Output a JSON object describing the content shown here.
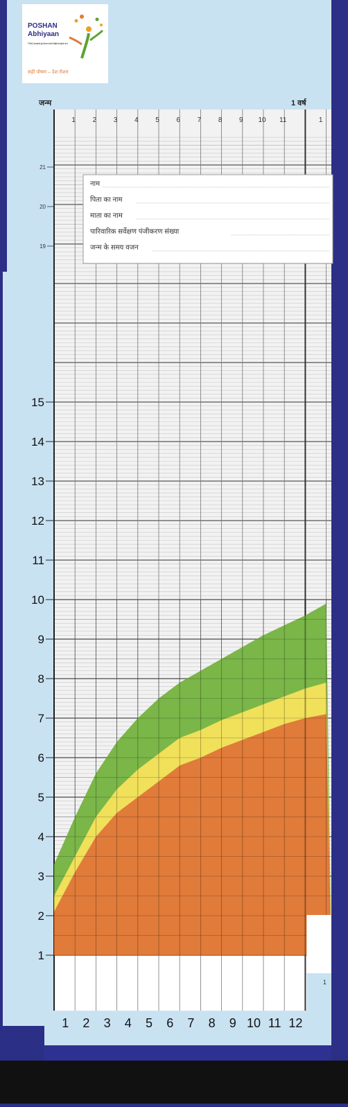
{
  "logo": {
    "brand_line1": "POSHAN",
    "brand_line2": "Abhiyaan",
    "tagline_small": "PM's Overarching Scheme for Holistic Nourishment",
    "slogan_hindi": "सही पोषण – देश रोशन"
  },
  "colors": {
    "page_bg": "#c9e2f2",
    "border_dark": "#2b2f86",
    "grid_bg": "#f2f2f2",
    "orange_band": "#e07b3a",
    "yellow_band": "#f0e05a",
    "green_band": "#7ab648",
    "footer_bar": "#2e3192",
    "bottom_strip": "#111111"
  },
  "header": {
    "birth_label": "जन्म",
    "year_label": "1 वर्ष",
    "top_month_ticks": [
      "1",
      "2",
      "3",
      "4",
      "5",
      "6",
      "7",
      "8",
      "9",
      "10",
      "11"
    ],
    "next_year_first_tick": "1"
  },
  "info_box": {
    "fields": [
      "नाम",
      "पिता का नाम",
      "माता का नाम",
      "पारिवारिक सर्वेक्षण पंजीकरण संख्या",
      "जन्म के समय वजन"
    ]
  },
  "chart_data": {
    "type": "area",
    "title": "",
    "xlabel": "",
    "ylabel": "",
    "x_ticks_bottom": [
      "1",
      "2",
      "3",
      "4",
      "5",
      "6",
      "7",
      "8",
      "9",
      "10",
      "11",
      "12"
    ],
    "x_tick_second_year": "1",
    "y_ticks": [
      "1",
      "2",
      "3",
      "4",
      "5",
      "6",
      "7",
      "8",
      "9",
      "10",
      "11",
      "12",
      "13",
      "14",
      "15"
    ],
    "y_ticks_upper": [
      "19",
      "20",
      "21"
    ],
    "ylim": [
      1,
      21.7
    ],
    "xlim": [
      0,
      13
    ],
    "grid": true,
    "series": [
      {
        "color": "orange_band",
        "x": [
          0,
          1,
          2,
          3,
          4,
          5,
          6,
          7,
          8,
          9,
          10,
          11,
          12,
          13
        ],
        "values": [
          2.1,
          3.1,
          4.0,
          4.6,
          5.0,
          5.4,
          5.8,
          6.0,
          6.25,
          6.45,
          6.65,
          6.85,
          7.0,
          7.1
        ]
      },
      {
        "color": "yellow_band",
        "x": [
          0,
          1,
          2,
          3,
          4,
          5,
          6,
          7,
          8,
          9,
          10,
          11,
          12,
          13
        ],
        "values": [
          2.5,
          3.5,
          4.5,
          5.2,
          5.7,
          6.1,
          6.5,
          6.7,
          6.95,
          7.15,
          7.35,
          7.55,
          7.75,
          7.9
        ]
      },
      {
        "color": "green_band",
        "x": [
          0,
          1,
          2,
          3,
          4,
          5,
          6,
          7,
          8,
          9,
          10,
          11,
          12,
          13
        ],
        "values": [
          3.3,
          4.5,
          5.6,
          6.4,
          7.0,
          7.5,
          7.9,
          8.2,
          8.5,
          8.8,
          9.1,
          9.35,
          9.6,
          9.9
        ]
      }
    ]
  }
}
